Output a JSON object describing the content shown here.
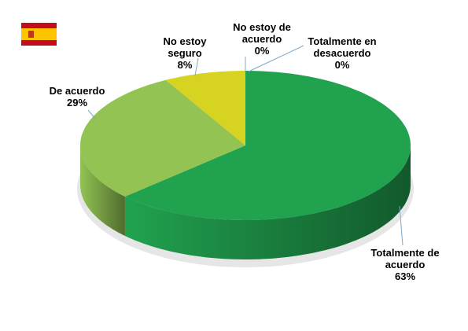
{
  "chart_data": {
    "type": "pie",
    "categories": [
      "Totalmente de acuerdo",
      "De acuerdo",
      "No estoy seguro",
      "No estoy de acuerdo",
      "Totalmente en desacuerdo"
    ],
    "values": [
      63,
      29,
      8,
      0,
      0
    ],
    "value_labels": [
      "63%",
      "29%",
      "8%",
      "0%",
      "0%"
    ],
    "colors": [
      "#21a24f",
      "#92c353",
      "#d6d321",
      "#2e75b6",
      "#7f7f7f"
    ]
  }
}
